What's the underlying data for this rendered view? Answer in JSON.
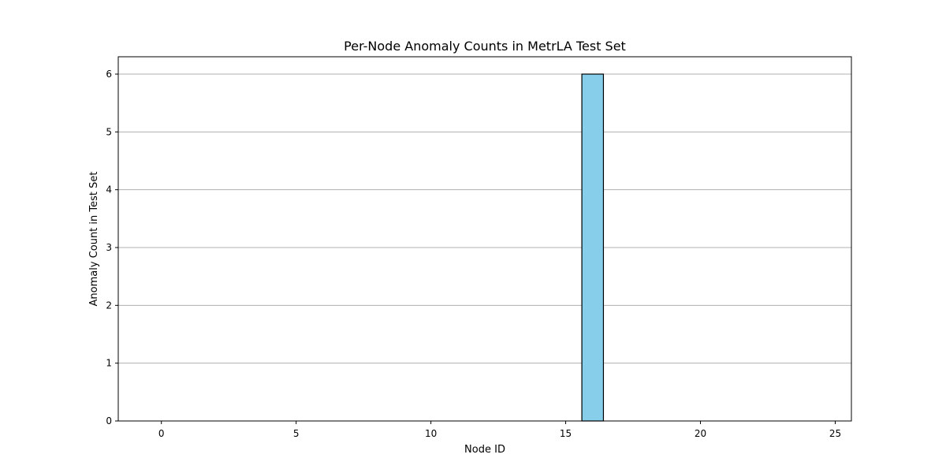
{
  "chart_data": {
    "type": "bar",
    "title": "Per-Node Anomaly Counts in MetrLA Test Set",
    "xlabel": "Node ID",
    "ylabel": "Anomaly Count in Test Set",
    "x": [
      0,
      1,
      2,
      3,
      4,
      5,
      6,
      7,
      8,
      9,
      10,
      11,
      12,
      13,
      14,
      15,
      16,
      17,
      18,
      19,
      20,
      21,
      22,
      23,
      24,
      25
    ],
    "values": [
      0,
      0,
      0,
      0,
      0,
      0,
      0,
      0,
      0,
      0,
      0,
      0,
      0,
      0,
      0,
      0,
      6,
      0,
      0,
      0,
      0,
      0,
      0,
      0,
      0,
      0
    ],
    "xlim": [
      -1.6,
      25.6
    ],
    "ylim": [
      0,
      6.3
    ],
    "xticks": [
      0,
      5,
      10,
      15,
      20,
      25
    ],
    "yticks": [
      0,
      1,
      2,
      3,
      4,
      5,
      6
    ],
    "grid": "y",
    "colors": {
      "bar_fill": "#87ceeb",
      "bar_edge": "#000000",
      "grid": "#b0b0b0",
      "axis": "#000000"
    }
  }
}
